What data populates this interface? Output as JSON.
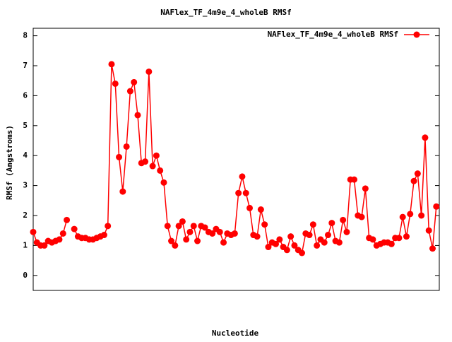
{
  "chart_data": {
    "type": "line",
    "title": "NAFlex_TF_4m9e_4_wholeB RMSf",
    "x_label": "Nucleotide",
    "y_label": "RMSf (Angstroms)",
    "x": [
      1,
      2,
      3,
      4,
      5,
      6,
      7,
      8,
      9,
      10,
      11,
      12,
      13,
      14,
      15,
      16,
      17,
      18,
      19,
      20,
      21,
      22,
      23,
      24,
      25,
      26,
      27,
      28,
      29,
      30,
      31,
      32,
      33,
      34,
      35,
      36,
      37,
      38,
      39,
      40,
      41,
      42,
      43,
      44,
      45,
      46,
      47,
      48,
      49,
      50,
      51,
      52,
      53,
      54,
      55,
      56,
      57,
      58,
      59,
      60,
      61,
      62,
      63,
      64,
      65,
      66,
      67,
      68,
      69,
      70,
      71,
      72,
      73,
      74,
      75,
      76,
      77,
      78,
      79,
      80,
      81,
      82,
      83,
      84,
      85,
      86,
      87,
      88,
      89,
      90,
      91,
      92,
      93,
      94,
      95,
      96,
      97,
      98,
      99,
      100,
      101,
      102,
      103,
      104,
      105,
      106,
      107,
      108,
      109
    ],
    "series": [
      {
        "name": "NAFlex_TF_4m9e_4_wholeB RMSf",
        "color": "#ff0000",
        "values": [
          1.45,
          1.1,
          1.0,
          1.0,
          1.15,
          1.1,
          1.15,
          1.2,
          1.4,
          1.85,
          null,
          1.55,
          1.3,
          1.25,
          1.25,
          1.2,
          1.2,
          1.25,
          1.3,
          1.35,
          1.65,
          7.05,
          6.4,
          3.95,
          2.8,
          4.3,
          6.15,
          6.45,
          5.35,
          3.75,
          3.8,
          6.8,
          3.65,
          4.0,
          3.5,
          3.1,
          1.65,
          1.15,
          1.0,
          1.65,
          1.8,
          1.2,
          1.45,
          1.65,
          1.15,
          1.65,
          1.6,
          1.45,
          1.4,
          1.55,
          1.45,
          1.1,
          1.4,
          1.35,
          1.4,
          2.75,
          3.3,
          2.75,
          2.25,
          1.35,
          1.3,
          2.2,
          1.7,
          0.95,
          1.1,
          1.05,
          1.2,
          0.95,
          0.85,
          1.3,
          1.0,
          0.85,
          0.75,
          1.4,
          1.35,
          1.7,
          1.0,
          1.2,
          1.1,
          1.35,
          1.75,
          1.15,
          1.1,
          1.85,
          1.45,
          3.2,
          3.2,
          2.0,
          1.95,
          2.9,
          1.25,
          1.2,
          1.0,
          1.05,
          1.1,
          1.1,
          1.05,
          1.25,
          1.25,
          1.95,
          1.3,
          2.05,
          3.15,
          3.4,
          2.0,
          4.6,
          1.5,
          0.9,
          2.3
        ]
      }
    ],
    "xlim": [
      1,
      109.8
    ],
    "ylim": [
      -0.5,
      8.25
    ],
    "yticks": [
      0,
      1,
      2,
      3,
      4,
      5,
      6,
      7,
      8
    ],
    "legend": "top-right"
  }
}
